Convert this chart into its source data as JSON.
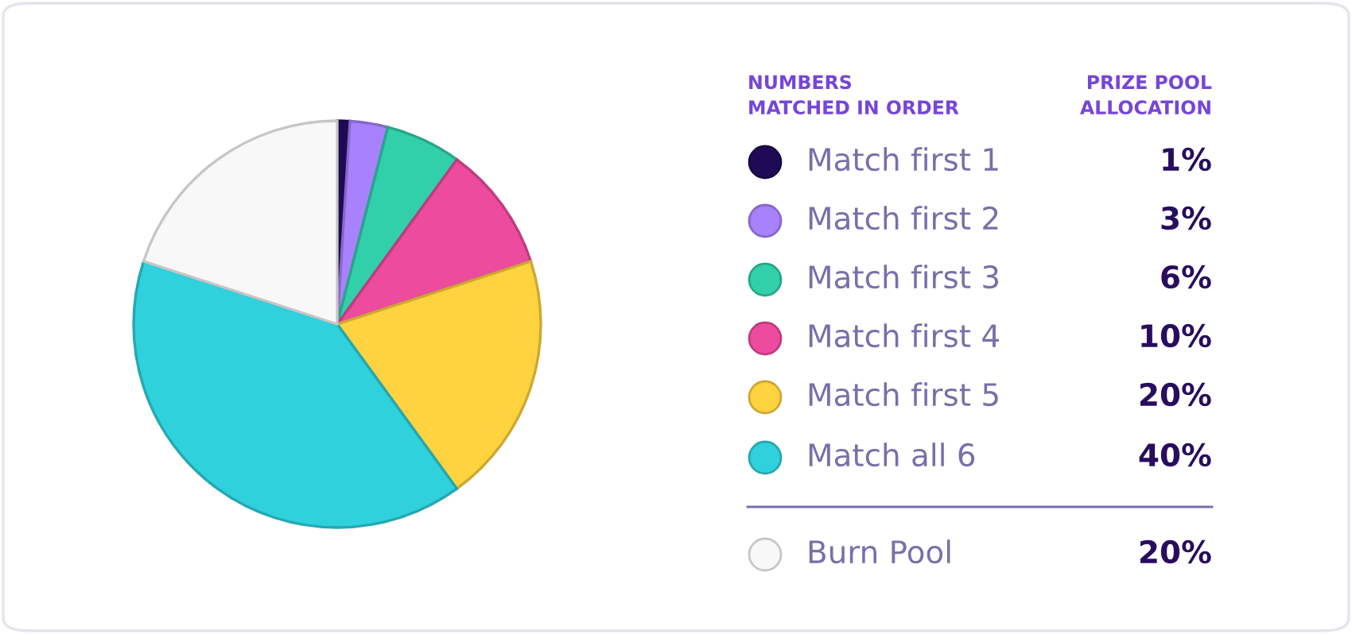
{
  "chart_data": {
    "type": "pie",
    "legend_title": "NUMBERS\nMATCHED IN ORDER",
    "annotations": [
      "PRIZE POOL\nALLOCATION"
    ],
    "categories": [
      "Match first 1",
      "Match first 2",
      "Match first 3",
      "Match first 4",
      "Match first 5",
      "Match all 6",
      "Burn Pool"
    ],
    "values": [
      1,
      3,
      6,
      10,
      20,
      40,
      20
    ],
    "colors": [
      "#1f0b55",
      "#a881fc",
      "#31d0aa",
      "#ed4b9e",
      "#ffd23f",
      "#2ed1dc",
      "#f8f8f8"
    ],
    "value_labels": [
      "1%",
      "3%",
      "6%",
      "10%",
      "20%",
      "40%",
      "20%"
    ],
    "legend": "right"
  }
}
